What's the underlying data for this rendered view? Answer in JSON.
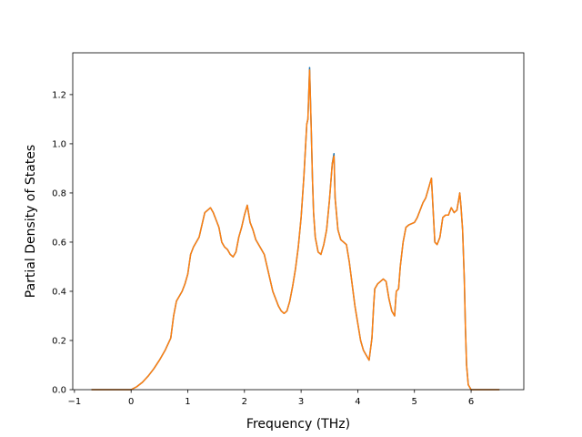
{
  "chart_data": {
    "type": "line",
    "title": "",
    "xlabel": "Frequency (THz)",
    "ylabel": "Partial Density of States",
    "xlim": [
      -1.03,
      6.93
    ],
    "ylim": [
      0.0,
      1.37
    ],
    "xticks": [
      -1,
      0,
      1,
      2,
      3,
      4,
      5,
      6
    ],
    "xtick_labels": [
      "−1",
      "0",
      "1",
      "2",
      "3",
      "4",
      "5",
      "6"
    ],
    "yticks": [
      0.0,
      0.2,
      0.4,
      0.6,
      0.8,
      1.0,
      1.2
    ],
    "ytick_labels": [
      "0.0",
      "0.2",
      "0.4",
      "0.6",
      "0.8",
      "1.0",
      "1.2"
    ],
    "grid": false,
    "legend": "none",
    "series": [
      {
        "color": "#1f77b4",
        "x": [
          -0.7,
          0.0,
          0.1,
          0.2,
          0.3,
          0.4,
          0.5,
          0.6,
          0.7,
          0.75,
          0.8,
          0.85,
          0.9,
          0.95,
          1.0,
          1.05,
          1.1,
          1.2,
          1.3,
          1.4,
          1.45,
          1.5,
          1.55,
          1.6,
          1.65,
          1.7,
          1.75,
          1.8,
          1.85,
          1.9,
          1.95,
          2.0,
          2.05,
          2.1,
          2.15,
          2.2,
          2.25,
          2.3,
          2.35,
          2.4,
          2.45,
          2.5,
          2.55,
          2.6,
          2.65,
          2.7,
          2.75,
          2.8,
          2.85,
          2.9,
          2.95,
          3.0,
          3.05,
          3.1,
          3.12,
          3.15,
          3.18,
          3.2,
          3.22,
          3.25,
          3.3,
          3.35,
          3.4,
          3.45,
          3.5,
          3.55,
          3.58,
          3.6,
          3.65,
          3.7,
          3.75,
          3.8,
          3.85,
          3.9,
          3.95,
          4.0,
          4.05,
          4.1,
          4.15,
          4.2,
          4.25,
          4.28,
          4.3,
          4.35,
          4.4,
          4.45,
          4.5,
          4.55,
          4.6,
          4.65,
          4.68,
          4.72,
          4.75,
          4.8,
          4.85,
          4.9,
          5.0,
          5.05,
          5.1,
          5.15,
          5.2,
          5.25,
          5.3,
          5.33,
          5.36,
          5.4,
          5.45,
          5.5,
          5.55,
          5.6,
          5.65,
          5.7,
          5.75,
          5.8,
          5.82,
          5.85,
          5.88,
          5.9,
          5.92,
          5.95,
          6.0,
          6.5
        ],
        "values": [
          0.0,
          0.0,
          0.012,
          0.03,
          0.055,
          0.085,
          0.12,
          0.16,
          0.21,
          0.3,
          0.36,
          0.38,
          0.4,
          0.43,
          0.47,
          0.55,
          0.58,
          0.62,
          0.72,
          0.74,
          0.72,
          0.69,
          0.66,
          0.6,
          0.58,
          0.57,
          0.55,
          0.54,
          0.56,
          0.62,
          0.66,
          0.71,
          0.75,
          0.68,
          0.65,
          0.61,
          0.59,
          0.57,
          0.55,
          0.5,
          0.45,
          0.4,
          0.37,
          0.34,
          0.32,
          0.31,
          0.32,
          0.36,
          0.42,
          0.49,
          0.58,
          0.7,
          0.87,
          1.08,
          1.1,
          1.31,
          1.05,
          0.86,
          0.72,
          0.62,
          0.56,
          0.55,
          0.59,
          0.65,
          0.77,
          0.92,
          0.96,
          0.78,
          0.65,
          0.61,
          0.6,
          0.59,
          0.52,
          0.43,
          0.34,
          0.27,
          0.2,
          0.16,
          0.14,
          0.12,
          0.21,
          0.34,
          0.41,
          0.43,
          0.44,
          0.45,
          0.44,
          0.37,
          0.32,
          0.3,
          0.4,
          0.41,
          0.5,
          0.6,
          0.66,
          0.67,
          0.68,
          0.7,
          0.73,
          0.76,
          0.78,
          0.82,
          0.86,
          0.73,
          0.6,
          0.59,
          0.62,
          0.7,
          0.71,
          0.71,
          0.74,
          0.72,
          0.73,
          0.8,
          0.75,
          0.65,
          0.45,
          0.25,
          0.1,
          0.02,
          0.0,
          0.0
        ]
      },
      {
        "color": "#ff7f0e",
        "x": [
          -0.7,
          0.0,
          0.1,
          0.2,
          0.3,
          0.4,
          0.5,
          0.6,
          0.7,
          0.75,
          0.8,
          0.85,
          0.9,
          0.95,
          1.0,
          1.05,
          1.1,
          1.2,
          1.3,
          1.4,
          1.45,
          1.5,
          1.55,
          1.6,
          1.65,
          1.7,
          1.75,
          1.8,
          1.85,
          1.9,
          1.95,
          2.0,
          2.05,
          2.1,
          2.15,
          2.2,
          2.25,
          2.3,
          2.35,
          2.4,
          2.45,
          2.5,
          2.55,
          2.6,
          2.65,
          2.7,
          2.75,
          2.8,
          2.85,
          2.9,
          2.95,
          3.0,
          3.05,
          3.1,
          3.12,
          3.15,
          3.18,
          3.2,
          3.22,
          3.25,
          3.3,
          3.35,
          3.4,
          3.45,
          3.5,
          3.55,
          3.58,
          3.6,
          3.65,
          3.7,
          3.75,
          3.8,
          3.85,
          3.9,
          3.95,
          4.0,
          4.05,
          4.1,
          4.15,
          4.2,
          4.25,
          4.28,
          4.3,
          4.35,
          4.4,
          4.45,
          4.5,
          4.55,
          4.6,
          4.65,
          4.68,
          4.72,
          4.75,
          4.8,
          4.85,
          4.9,
          5.0,
          5.05,
          5.1,
          5.15,
          5.2,
          5.25,
          5.3,
          5.33,
          5.36,
          5.4,
          5.45,
          5.5,
          5.55,
          5.6,
          5.65,
          5.7,
          5.75,
          5.8,
          5.82,
          5.85,
          5.88,
          5.9,
          5.92,
          5.95,
          6.0,
          6.5
        ],
        "values": [
          0.0,
          0.0,
          0.012,
          0.03,
          0.055,
          0.085,
          0.12,
          0.16,
          0.21,
          0.3,
          0.36,
          0.38,
          0.4,
          0.43,
          0.47,
          0.55,
          0.58,
          0.62,
          0.72,
          0.74,
          0.72,
          0.69,
          0.66,
          0.6,
          0.58,
          0.57,
          0.55,
          0.54,
          0.56,
          0.62,
          0.66,
          0.71,
          0.75,
          0.68,
          0.65,
          0.61,
          0.59,
          0.57,
          0.55,
          0.5,
          0.45,
          0.4,
          0.37,
          0.34,
          0.32,
          0.31,
          0.32,
          0.36,
          0.42,
          0.49,
          0.58,
          0.7,
          0.87,
          1.08,
          1.1,
          1.3,
          1.05,
          0.86,
          0.72,
          0.62,
          0.56,
          0.55,
          0.59,
          0.65,
          0.77,
          0.92,
          0.95,
          0.78,
          0.65,
          0.61,
          0.6,
          0.59,
          0.52,
          0.43,
          0.34,
          0.27,
          0.2,
          0.16,
          0.14,
          0.12,
          0.21,
          0.34,
          0.41,
          0.43,
          0.44,
          0.45,
          0.44,
          0.37,
          0.32,
          0.3,
          0.4,
          0.41,
          0.5,
          0.6,
          0.66,
          0.67,
          0.68,
          0.7,
          0.73,
          0.76,
          0.78,
          0.82,
          0.86,
          0.73,
          0.6,
          0.59,
          0.62,
          0.7,
          0.71,
          0.71,
          0.74,
          0.72,
          0.73,
          0.8,
          0.75,
          0.65,
          0.45,
          0.25,
          0.1,
          0.02,
          0.0,
          0.0
        ]
      }
    ]
  }
}
